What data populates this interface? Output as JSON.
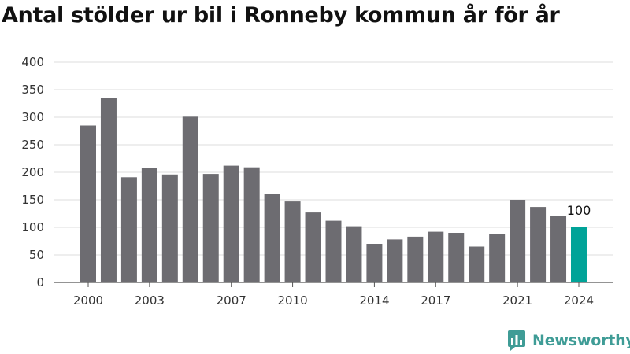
{
  "title": "Antal stölder ur bil i Ronneby kommun år för år",
  "brand": {
    "name": "Newsworthy",
    "icon": "newsworthy-logo-icon",
    "color": "#3f9c96"
  },
  "chart_data": {
    "type": "bar",
    "title": "Antal stölder ur bil i Ronneby kommun år för år",
    "xlabel": "",
    "ylabel": "",
    "ylim": [
      0,
      400
    ],
    "y_ticks": [
      0,
      50,
      100,
      150,
      200,
      250,
      300,
      350,
      400
    ],
    "x_tick_labels": [
      "2000",
      "2003",
      "2007",
      "2010",
      "2014",
      "2017",
      "2021",
      "2024"
    ],
    "grid": true,
    "categories": [
      "2000",
      "2001",
      "2002",
      "2003",
      "2004",
      "2005",
      "2006",
      "2007",
      "2008",
      "2009",
      "2010",
      "2011",
      "2012",
      "2013",
      "2014",
      "2015",
      "2016",
      "2017",
      "2018",
      "2019",
      "2020",
      "2021",
      "2022",
      "2023",
      "2024"
    ],
    "values": [
      285,
      335,
      191,
      208,
      196,
      301,
      197,
      212,
      209,
      161,
      147,
      127,
      112,
      102,
      70,
      78,
      83,
      92,
      90,
      65,
      88,
      150,
      137,
      121,
      100
    ],
    "data_labels": [
      {
        "category": "2024",
        "text": "100"
      }
    ],
    "bar_color": "#6d6c71",
    "highlight_category": "2024",
    "highlight_color": "#00a398",
    "grid_color": "#dddddd"
  }
}
